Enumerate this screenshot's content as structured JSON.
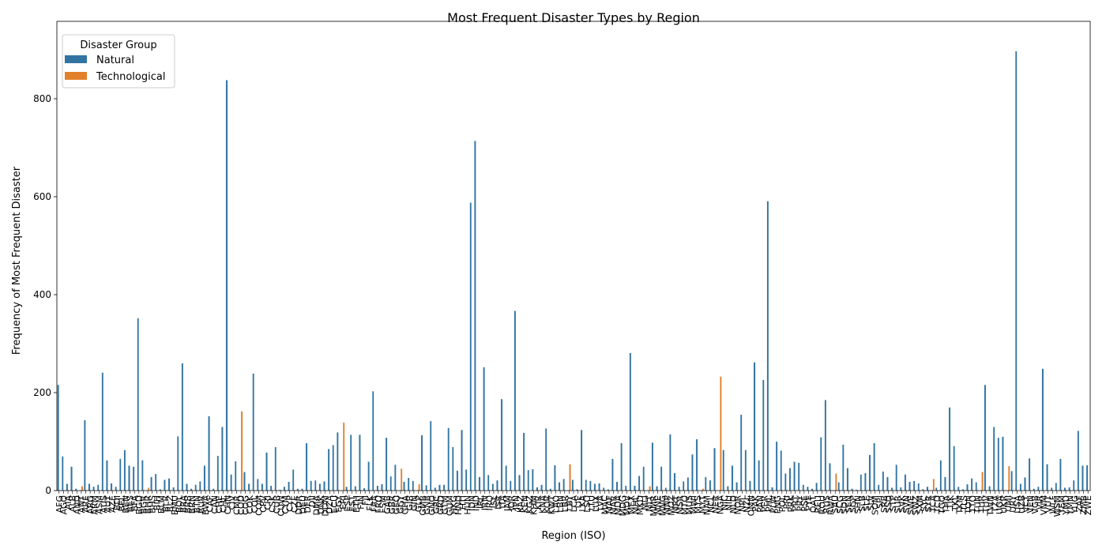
{
  "chart_data": {
    "type": "bar",
    "title": "Most Frequent Disaster Types by Region",
    "x_label": "Region (ISO)",
    "y_label": "Frequency of Most Frequent Disaster",
    "legend_title": "Disaster Group",
    "legend": "upper left",
    "ylim": [
      0,
      958
    ],
    "yticks": [
      0,
      200,
      400,
      600,
      800
    ],
    "categories": [
      "AFG",
      "AGO",
      "AIA",
      "ALB",
      "AND",
      "ANT",
      "ARE",
      "ARG",
      "ARM",
      "ASM",
      "AUS",
      "AUT",
      "AZE",
      "BDI",
      "BEL",
      "BEN",
      "BES",
      "BFA",
      "BGD",
      "BGR",
      "BHR",
      "BHS",
      "BIH",
      "BLM",
      "BLR",
      "BLZ",
      "BMU",
      "BOL",
      "BRA",
      "BRB",
      "BRN",
      "BTN",
      "BUR",
      "BWA",
      "CAF",
      "CAN",
      "CHE",
      "CHL",
      "CHN",
      "CIV",
      "CMR",
      "COD",
      "COG",
      "COK",
      "COL",
      "COM",
      "CPV",
      "CRI",
      "CSK",
      "CUB",
      "CUW",
      "CYM",
      "CYP",
      "CZE",
      "DDR",
      "DEU",
      "DFR",
      "DJI",
      "DMA",
      "DNK",
      "DOM",
      "DZA",
      "ECU",
      "EGY",
      "ERI",
      "ESP",
      "EST",
      "ETH",
      "FIN",
      "FJI",
      "FLK",
      "FRA",
      "FRO",
      "FSM",
      "GAB",
      "GBR",
      "GEO",
      "GGY",
      "GHA",
      "GIB",
      "GIN",
      "GLP",
      "GMB",
      "GNB",
      "GNQ",
      "GRC",
      "GRD",
      "GTM",
      "GUM",
      "HKG",
      "HND",
      "HTI",
      "HUN",
      "IDN",
      "IND",
      "IRL",
      "IRN",
      "IRQ",
      "ISL",
      "ISR",
      "ITA",
      "JAM",
      "JOR",
      "JPN",
      "KAZ",
      "KEN",
      "KGZ",
      "KHM",
      "KIR",
      "KNA",
      "KOR",
      "KWT",
      "LAO",
      "LBN",
      "LBR",
      "LBY",
      "LCA",
      "LIE",
      "LKA",
      "LSO",
      "LTU",
      "LUX",
      "LVA",
      "MAC",
      "MAF",
      "MAR",
      "MDA",
      "MDG",
      "MDV",
      "MEX",
      "MHL",
      "MKD",
      "MLI",
      "MLT",
      "MMR",
      "MNE",
      "MNG",
      "MNP",
      "MOZ",
      "MRT",
      "MSR",
      "MTQ",
      "MUS",
      "MWI",
      "MYS",
      "MYT",
      "NAM",
      "NCL",
      "NER",
      "NGA",
      "NIC",
      "NIU",
      "NLD",
      "NOR",
      "NPL",
      "NZL",
      "OMN",
      "PAK",
      "PAN",
      "PER",
      "PHL",
      "PLW",
      "PNG",
      "POL",
      "PRI",
      "PRK",
      "PRT",
      "PRY",
      "PSE",
      "PYF",
      "QAT",
      "REU",
      "ROU",
      "RUS",
      "RWA",
      "SAU",
      "SCG",
      "SDN",
      "SEN",
      "SGP",
      "SHN",
      "SLB",
      "SLE",
      "SLV",
      "SOM",
      "SPI",
      "SRB",
      "SSD",
      "STP",
      "SUR",
      "SVK",
      "SVN",
      "SWE",
      "SWZ",
      "SXM",
      "SYC",
      "SYR",
      "TCA",
      "TCD",
      "TGO",
      "THA",
      "TJK",
      "TKL",
      "TKM",
      "TLS",
      "TON",
      "TTO",
      "TUN",
      "TUR",
      "TUV",
      "TWN",
      "TZA",
      "UGA",
      "UKR",
      "UMI",
      "URY",
      "USA",
      "UZB",
      "VCT",
      "VEN",
      "VGB",
      "VIR",
      "VNM",
      "VUT",
      "WLF",
      "WSM",
      "YEM",
      "YMD",
      "YMN",
      "YUG",
      "ZAF",
      "ZMB",
      "ZWE"
    ],
    "series": [
      {
        "name": "Natural",
        "color": "#3274a1",
        "values": [
          216,
          70,
          14,
          49,
          4,
          null,
          144,
          14,
          8,
          12,
          241,
          62,
          15,
          8,
          65,
          83,
          51,
          49,
          352,
          62,
          null,
          28,
          34,
          3,
          22,
          25,
          7,
          111,
          260,
          14,
          4,
          12,
          19,
          51,
          152,
          4,
          71,
          130,
          838,
          33,
          60,
          null,
          38,
          14,
          239,
          24,
          14,
          78,
          10,
          89,
          2,
          8,
          18,
          43,
          4,
          4,
          97,
          20,
          21,
          14,
          19,
          85,
          93,
          119,
          null,
          8,
          114,
          9,
          114,
          5,
          59,
          203,
          10,
          13,
          108,
          29,
          53,
          null,
          18,
          26,
          20,
          null,
          113,
          11,
          142,
          6,
          12,
          12,
          128,
          89,
          41,
          124,
          43,
          588,
          714,
          28,
          252,
          32,
          14,
          21,
          187,
          51,
          20,
          367,
          32,
          118,
          42,
          44,
          7,
          12,
          127,
          4,
          52,
          17,
          24,
          null,
          22,
          3,
          124,
          22,
          20,
          14,
          15,
          6,
          3,
          65,
          18,
          97,
          10,
          281,
          10,
          30,
          49,
          null,
          98,
          9,
          49,
          6,
          115,
          36,
          8,
          19,
          27,
          74,
          105,
          null,
          28,
          21,
          87,
          null,
          83,
          9,
          51,
          17,
          155,
          83,
          20,
          262,
          62,
          226,
          591,
          7,
          100,
          82,
          35,
          46,
          59,
          57,
          12,
          8,
          4,
          16,
          109,
          185,
          56,
          null,
          17,
          94,
          46,
          4,
          2,
          33,
          36,
          73,
          97,
          12,
          39,
          28,
          6,
          53,
          7,
          33,
          18,
          20,
          15,
          3,
          8,
          null,
          6,
          62,
          28,
          170,
          91,
          8,
          3,
          13,
          25,
          17,
          null,
          216,
          9,
          130,
          108,
          110,
          null,
          40,
          897,
          14,
          27,
          66,
          4,
          8,
          249,
          54,
          6,
          16,
          65,
          6,
          7,
          21,
          122,
          51,
          52
        ]
      },
      {
        "name": "Technological",
        "color": "#e1812c",
        "values": [
          null,
          null,
          null,
          null,
          null,
          9,
          null,
          null,
          null,
          null,
          null,
          null,
          null,
          null,
          null,
          null,
          null,
          null,
          null,
          null,
          6,
          null,
          null,
          null,
          null,
          null,
          null,
          null,
          null,
          null,
          null,
          null,
          null,
          null,
          null,
          null,
          null,
          null,
          null,
          null,
          null,
          162,
          null,
          null,
          null,
          null,
          null,
          null,
          null,
          null,
          null,
          null,
          null,
          null,
          null,
          null,
          null,
          null,
          null,
          null,
          null,
          null,
          null,
          null,
          139,
          null,
          null,
          null,
          null,
          null,
          null,
          null,
          null,
          null,
          null,
          null,
          null,
          45,
          null,
          null,
          null,
          13,
          null,
          null,
          null,
          null,
          null,
          null,
          null,
          null,
          null,
          null,
          null,
          null,
          null,
          null,
          null,
          null,
          null,
          null,
          null,
          null,
          null,
          null,
          null,
          null,
          null,
          null,
          null,
          null,
          null,
          null,
          null,
          null,
          null,
          54,
          null,
          null,
          null,
          null,
          null,
          null,
          null,
          null,
          null,
          null,
          null,
          null,
          null,
          null,
          null,
          null,
          null,
          9,
          null,
          null,
          null,
          null,
          null,
          null,
          null,
          null,
          null,
          null,
          null,
          4,
          null,
          null,
          null,
          233,
          null,
          null,
          null,
          null,
          null,
          null,
          null,
          null,
          null,
          null,
          null,
          null,
          null,
          null,
          null,
          null,
          null,
          null,
          null,
          null,
          null,
          null,
          null,
          null,
          null,
          35,
          null,
          null,
          null,
          null,
          null,
          null,
          null,
          null,
          null,
          null,
          null,
          null,
          null,
          null,
          null,
          null,
          null,
          null,
          null,
          null,
          null,
          24,
          null,
          null,
          null,
          null,
          null,
          null,
          null,
          null,
          null,
          null,
          38,
          null,
          null,
          null,
          null,
          null,
          50,
          null,
          null,
          null,
          null,
          null,
          null,
          null,
          null,
          null,
          null,
          null,
          null,
          null,
          null,
          null,
          null,
          null,
          null
        ]
      }
    ]
  }
}
